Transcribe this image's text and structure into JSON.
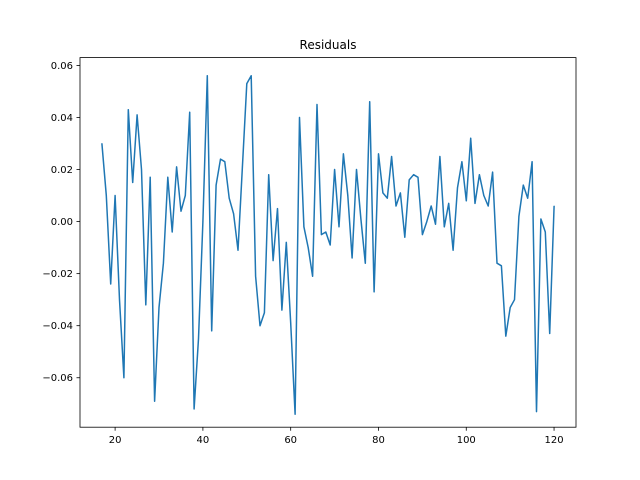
{
  "chart_data": {
    "type": "line",
    "title": "Residuals",
    "xlabel": "",
    "ylabel": "",
    "xlim": [
      12,
      125
    ],
    "ylim": [
      -0.079,
      0.063
    ],
    "xticks": [
      20,
      40,
      60,
      80,
      100,
      120
    ],
    "xtick_labels": [
      "20",
      "40",
      "60",
      "80",
      "100",
      "120"
    ],
    "yticks": [
      -0.06,
      -0.04,
      -0.02,
      0.0,
      0.02,
      0.04,
      0.06
    ],
    "ytick_labels": [
      "−0.06",
      "−0.04",
      "−0.02",
      "0.00",
      "0.02",
      "0.04",
      "0.06"
    ],
    "grid": false,
    "line_color": "#1f77b4",
    "series": [
      {
        "x": [
          17,
          18,
          19,
          20,
          21,
          22,
          23,
          24,
          25,
          26,
          27,
          28,
          29,
          30,
          31,
          32,
          33,
          34,
          35,
          36,
          37,
          38,
          39,
          40,
          41,
          42,
          43,
          44,
          45,
          46,
          47,
          48,
          49,
          50,
          51,
          52,
          53,
          54,
          55,
          56,
          57,
          58,
          59,
          60,
          61,
          62,
          63,
          64,
          65,
          66,
          67,
          68,
          69,
          70,
          71,
          72,
          73,
          74,
          75,
          76,
          77,
          78,
          79,
          80,
          81,
          82,
          83,
          84,
          85,
          86,
          87,
          88,
          89,
          90,
          91,
          92,
          93,
          94,
          95,
          96,
          97,
          98,
          99,
          100,
          101,
          102,
          103,
          104,
          105,
          106,
          107,
          108,
          109,
          110,
          111,
          112,
          113,
          114,
          115,
          116,
          117,
          118,
          119,
          120
        ],
        "y": [
          0.03,
          0.01,
          -0.024,
          0.01,
          -0.03,
          -0.06,
          0.043,
          0.015,
          0.041,
          0.02,
          -0.032,
          0.017,
          -0.069,
          -0.033,
          -0.016,
          0.017,
          -0.004,
          0.021,
          0.004,
          0.01,
          0.042,
          -0.072,
          -0.045,
          0.0,
          0.056,
          -0.042,
          0.014,
          0.024,
          0.023,
          0.009,
          0.003,
          -0.011,
          0.021,
          0.053,
          0.056,
          -0.021,
          -0.04,
          -0.035,
          0.018,
          -0.015,
          0.005,
          -0.034,
          -0.008,
          -0.039,
          -0.074,
          0.04,
          -0.002,
          -0.01,
          -0.021,
          0.045,
          -0.005,
          -0.004,
          -0.009,
          0.02,
          -0.002,
          0.026,
          0.01,
          -0.014,
          0.02,
          0.001,
          -0.016,
          0.046,
          -0.027,
          0.026,
          0.011,
          0.009,
          0.025,
          0.006,
          0.011,
          -0.006,
          0.016,
          0.018,
          0.017,
          -0.005,
          0.0,
          0.006,
          -0.001,
          0.025,
          -0.002,
          0.007,
          -0.011,
          0.013,
          0.023,
          0.008,
          0.032,
          0.007,
          0.018,
          0.01,
          0.006,
          0.019,
          -0.016,
          -0.017,
          -0.044,
          -0.033,
          -0.03,
          0.002,
          0.014,
          0.009,
          0.023,
          -0.073,
          0.001,
          -0.004,
          -0.043,
          0.006
        ]
      }
    ]
  }
}
